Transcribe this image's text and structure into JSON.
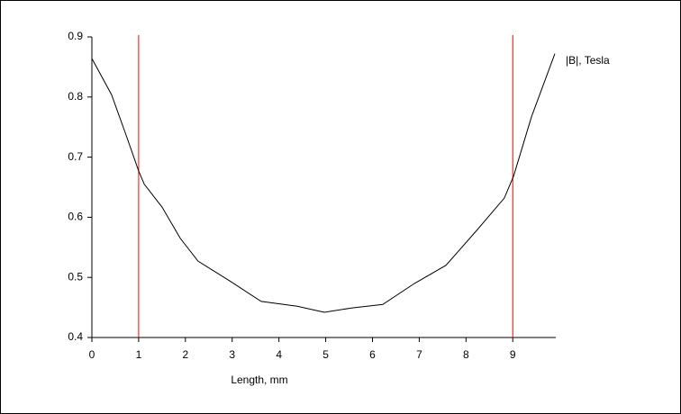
{
  "chart_data": {
    "type": "line",
    "x_label": "Length, mm",
    "x": [
      0,
      0.42,
      0.73,
      1,
      1.12,
      1.5,
      1.89,
      2.27,
      2.95,
      3.62,
      4.39,
      4.97,
      5.55,
      6.22,
      6.9,
      7.57,
      8.25,
      8.82,
      9.02,
      9.4,
      9.9
    ],
    "series": [
      {
        "name": "|B|, Tesla",
        "color": "#000000",
        "values": [
          0.864,
          0.804,
          0.737,
          0.677,
          0.655,
          0.617,
          0.565,
          0.527,
          0.494,
          0.46,
          0.452,
          0.442,
          0.449,
          0.455,
          0.49,
          0.52,
          0.58,
          0.632,
          0.669,
          0.767,
          0.872
        ]
      }
    ],
    "xlim": [
      0,
      9.92
    ],
    "xticks": [
      0,
      1,
      2,
      3,
      4,
      5,
      6,
      7,
      8,
      9
    ],
    "ylim": [
      0.4,
      0.9
    ],
    "yticks": [
      0.4,
      0.5,
      0.6,
      0.7,
      0.8,
      0.9
    ],
    "vlines": {
      "x": [
        1,
        9
      ],
      "color": "#ff0000"
    },
    "grid": false
  }
}
